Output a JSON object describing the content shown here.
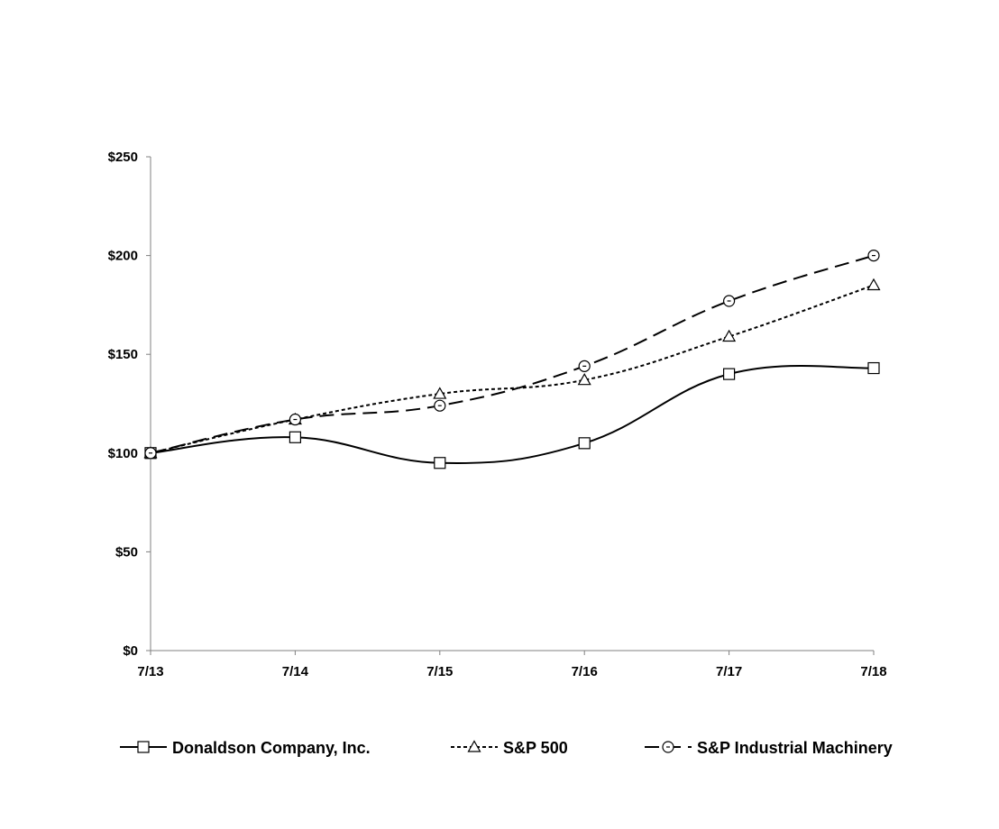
{
  "chart_data": {
    "type": "line",
    "title": "",
    "xlabel": "",
    "ylabel": "",
    "categories": [
      "7/13",
      "7/14",
      "7/15",
      "7/16",
      "7/17",
      "7/18"
    ],
    "ylim": [
      0,
      250
    ],
    "yticks": [
      0,
      50,
      100,
      150,
      200,
      250
    ],
    "ytick_labels": [
      "$0",
      "$50",
      "$100",
      "$150",
      "$200",
      "$250"
    ],
    "grid": false,
    "legend_position": "bottom",
    "series": [
      {
        "name": "Donaldson Company, Inc.",
        "values": [
          100,
          108,
          95,
          105,
          140,
          143
        ],
        "line_style": "solid",
        "marker": "square",
        "color": "#000000"
      },
      {
        "name": "S&P 500",
        "values": [
          100,
          117,
          130,
          137,
          159,
          185
        ],
        "line_style": "short-dash",
        "marker": "triangle",
        "color": "#000000"
      },
      {
        "name": "S&P Industrial Machinery",
        "values": [
          100,
          117,
          124,
          144,
          177,
          200
        ],
        "line_style": "long-dash",
        "marker": "circle",
        "color": "#000000"
      }
    ]
  }
}
